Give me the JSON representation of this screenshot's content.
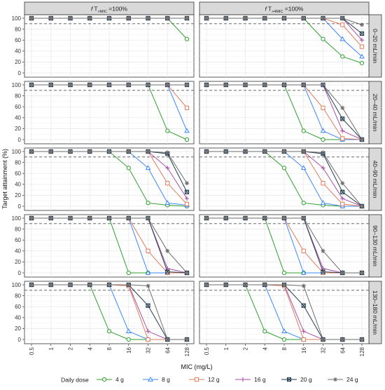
{
  "chart_data": {
    "type": "line",
    "x": [
      "0.5",
      "1",
      "2",
      "4",
      "8",
      "16",
      "32",
      "64",
      "128"
    ],
    "xlabel": "MIC (mg/L)",
    "ylabel": "Target attainment (%)",
    "ylim": [
      0,
      100
    ],
    "yticks": [
      "0",
      "20",
      "40",
      "60",
      "80",
      "100"
    ],
    "reference_line": 90,
    "columns": [
      {
        "main": "f",
        "mid": "T",
        "sub": ">MIC",
        "tail": " =100%"
      },
      {
        "main": "f",
        "mid": "T",
        "sub": ">4MIC",
        "tail": " =100%"
      }
    ],
    "rows": [
      "0–20 mL/min",
      "20–40 mL/min",
      "40–90 mL/min",
      "90–130 mL/min",
      "130–180 mL/min"
    ],
    "legend": {
      "title": "Daily dose",
      "entries": [
        {
          "label": "4 g",
          "color": "#2ca02c",
          "marker": "circle"
        },
        {
          "label": "8 g",
          "color": "#3a86ff",
          "marker": "triangle"
        },
        {
          "label": "12 g",
          "color": "#e07b5b",
          "marker": "square"
        },
        {
          "label": "16 g",
          "color": "#a94fa6",
          "marker": "plus"
        },
        {
          "label": "20 g",
          "color": "#1f3b4d",
          "marker": "square-x"
        },
        {
          "label": "24 g",
          "color": "#6b6b6b",
          "marker": "asterisk"
        }
      ]
    },
    "panels": [
      {
        "row": 0,
        "col": 0,
        "series": [
          [
            100,
            100,
            100,
            100,
            100,
            100,
            100,
            100,
            62
          ],
          [
            100,
            100,
            100,
            100,
            100,
            100,
            100,
            100,
            100
          ],
          [
            100,
            100,
            100,
            100,
            100,
            100,
            100,
            100,
            100
          ],
          [
            100,
            100,
            100,
            100,
            100,
            100,
            100,
            100,
            100
          ],
          [
            100,
            100,
            100,
            100,
            100,
            100,
            100,
            100,
            100
          ],
          [
            100,
            100,
            100,
            100,
            100,
            100,
            100,
            100,
            100
          ]
        ]
      },
      {
        "row": 0,
        "col": 1,
        "series": [
          [
            100,
            100,
            100,
            100,
            100,
            100,
            62,
            30,
            18
          ],
          [
            100,
            100,
            100,
            100,
            100,
            100,
            100,
            62,
            30
          ],
          [
            100,
            100,
            100,
            100,
            100,
            100,
            100,
            88,
            48
          ],
          [
            100,
            100,
            100,
            100,
            100,
            100,
            100,
            100,
            60
          ],
          [
            100,
            100,
            100,
            100,
            100,
            100,
            100,
            100,
            72
          ],
          [
            100,
            100,
            100,
            100,
            100,
            100,
            100,
            100,
            88
          ]
        ]
      },
      {
        "row": 1,
        "col": 0,
        "series": [
          [
            100,
            100,
            100,
            100,
            100,
            100,
            100,
            16,
            0
          ],
          [
            100,
            100,
            100,
            100,
            100,
            100,
            100,
            100,
            16
          ],
          [
            100,
            100,
            100,
            100,
            100,
            100,
            100,
            100,
            58
          ],
          [
            100,
            100,
            100,
            100,
            100,
            100,
            100,
            100,
            100
          ],
          [
            100,
            100,
            100,
            100,
            100,
            100,
            100,
            100,
            100
          ],
          [
            100,
            100,
            100,
            100,
            100,
            100,
            100,
            100,
            100
          ]
        ]
      },
      {
        "row": 1,
        "col": 1,
        "series": [
          [
            100,
            100,
            100,
            100,
            100,
            16,
            0,
            0,
            0
          ],
          [
            100,
            100,
            100,
            100,
            100,
            100,
            16,
            0,
            0
          ],
          [
            100,
            100,
            100,
            100,
            100,
            100,
            58,
            2,
            0
          ],
          [
            100,
            100,
            100,
            100,
            100,
            100,
            100,
            16,
            0
          ],
          [
            100,
            100,
            100,
            100,
            100,
            100,
            100,
            38,
            0
          ],
          [
            100,
            100,
            100,
            100,
            100,
            100,
            100,
            58,
            0
          ]
        ]
      },
      {
        "row": 2,
        "col": 0,
        "series": [
          [
            100,
            100,
            100,
            100,
            100,
            70,
            6,
            2,
            0
          ],
          [
            100,
            100,
            100,
            100,
            100,
            100,
            70,
            6,
            2
          ],
          [
            100,
            100,
            100,
            100,
            100,
            100,
            100,
            42,
            4
          ],
          [
            100,
            100,
            100,
            100,
            100,
            100,
            100,
            70,
            14
          ],
          [
            100,
            100,
            100,
            100,
            100,
            100,
            100,
            96,
            26
          ],
          [
            100,
            100,
            100,
            100,
            100,
            100,
            100,
            98,
            42
          ]
        ]
      },
      {
        "row": 2,
        "col": 1,
        "series": [
          [
            100,
            100,
            100,
            100,
            70,
            6,
            2,
            0,
            0
          ],
          [
            100,
            100,
            100,
            100,
            100,
            70,
            6,
            0,
            0
          ],
          [
            100,
            100,
            100,
            100,
            100,
            100,
            42,
            4,
            0
          ],
          [
            100,
            100,
            100,
            100,
            100,
            100,
            70,
            14,
            0
          ],
          [
            100,
            100,
            100,
            100,
            100,
            100,
            96,
            26,
            0
          ],
          [
            100,
            100,
            100,
            100,
            100,
            100,
            98,
            42,
            0
          ]
        ]
      },
      {
        "row": 3,
        "col": 0,
        "series": [
          [
            100,
            100,
            100,
            100,
            100,
            0,
            0,
            0,
            0
          ],
          [
            100,
            100,
            100,
            100,
            100,
            100,
            0,
            0,
            0
          ],
          [
            100,
            100,
            100,
            100,
            100,
            100,
            40,
            0,
            0
          ],
          [
            100,
            100,
            100,
            100,
            100,
            100,
            100,
            8,
            0
          ],
          [
            100,
            100,
            100,
            100,
            100,
            100,
            100,
            2,
            0
          ],
          [
            100,
            100,
            100,
            100,
            100,
            100,
            100,
            40,
            0
          ]
        ]
      },
      {
        "row": 3,
        "col": 1,
        "series": [
          [
            100,
            100,
            100,
            100,
            0,
            0,
            0,
            0,
            0
          ],
          [
            100,
            100,
            100,
            100,
            100,
            0,
            0,
            0,
            0
          ],
          [
            100,
            100,
            100,
            100,
            100,
            40,
            0,
            0,
            0
          ],
          [
            100,
            100,
            100,
            100,
            100,
            100,
            8,
            0,
            0
          ],
          [
            100,
            100,
            100,
            100,
            100,
            100,
            2,
            0,
            0
          ],
          [
            100,
            100,
            100,
            100,
            100,
            100,
            40,
            0,
            0
          ]
        ]
      },
      {
        "row": 4,
        "col": 0,
        "series": [
          [
            100,
            100,
            100,
            100,
            15,
            0,
            0,
            0,
            0
          ],
          [
            100,
            100,
            100,
            100,
            100,
            15,
            0,
            0,
            0
          ],
          [
            100,
            100,
            100,
            100,
            100,
            98,
            0,
            0,
            0
          ],
          [
            100,
            100,
            100,
            100,
            100,
            100,
            15,
            0,
            0
          ],
          [
            100,
            100,
            100,
            100,
            100,
            100,
            62,
            0,
            0
          ],
          [
            100,
            100,
            100,
            100,
            100,
            100,
            98,
            0,
            0
          ]
        ]
      },
      {
        "row": 4,
        "col": 1,
        "series": [
          [
            100,
            100,
            100,
            15,
            0,
            0,
            0,
            0,
            0
          ],
          [
            100,
            100,
            100,
            100,
            15,
            0,
            0,
            0,
            0
          ],
          [
            100,
            100,
            100,
            100,
            98,
            0,
            0,
            0,
            0
          ],
          [
            100,
            100,
            100,
            100,
            100,
            15,
            0,
            0,
            0
          ],
          [
            100,
            100,
            100,
            100,
            100,
            62,
            0,
            0,
            0
          ],
          [
            100,
            100,
            100,
            100,
            100,
            98,
            0,
            0,
            0
          ]
        ]
      }
    ]
  }
}
